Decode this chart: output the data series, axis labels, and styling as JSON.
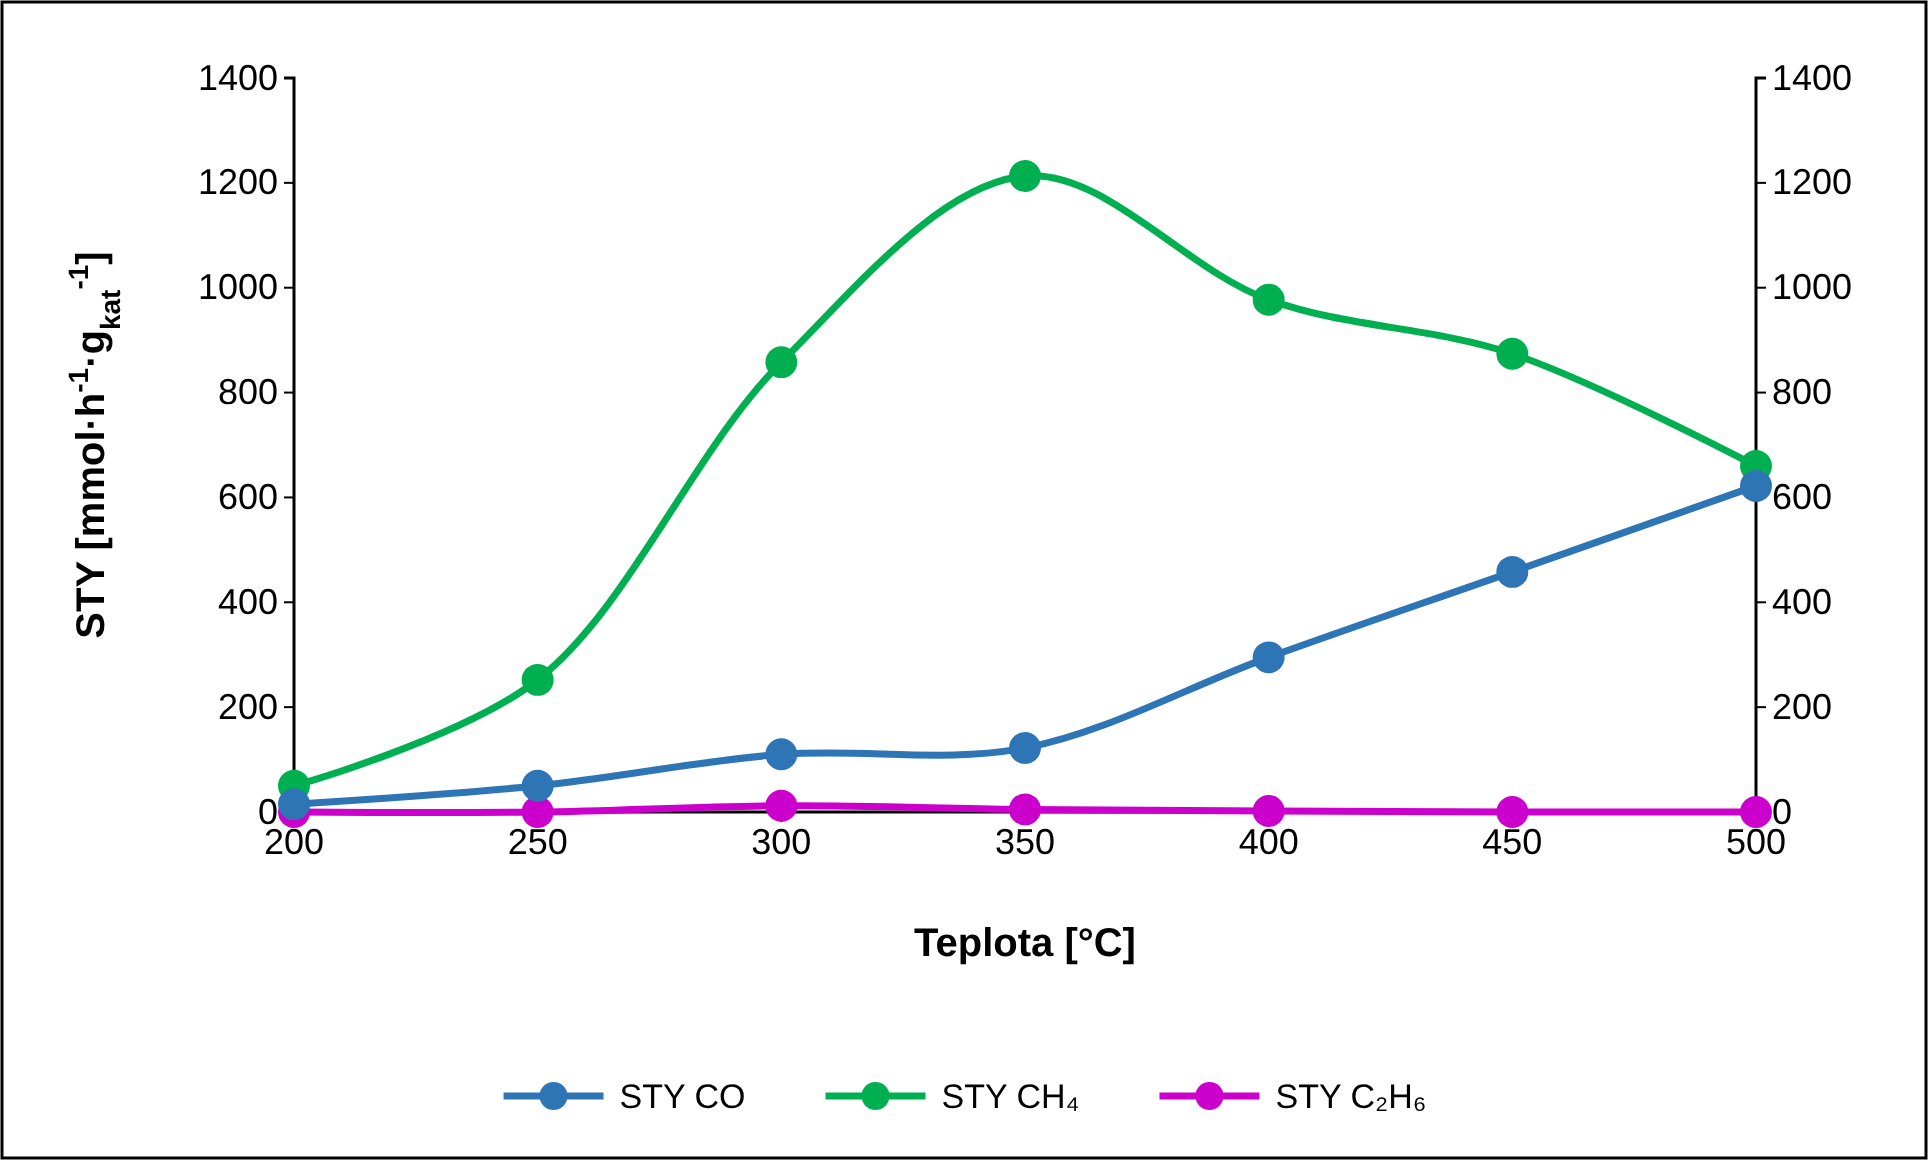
{
  "chart_data": {
    "type": "line",
    "xlabel": "Teplota [°C]",
    "ylabel": "STY [mmol·h$^{-1}$·g$_{kat}$$^{-1}$]",
    "x": [
      200,
      250,
      300,
      350,
      400,
      450,
      500
    ],
    "series": [
      {
        "name": "STY CO",
        "color": "#2e75b6",
        "values": [
          15,
          50,
          110,
          122,
          295,
          458,
          622
        ]
      },
      {
        "name": "STY CH₄",
        "color": "#00b050",
        "values": [
          50,
          252,
          858,
          1213,
          977,
          874,
          660
        ]
      },
      {
        "name": "STY C₂H₆",
        "color": "#cc00cc",
        "values": [
          0,
          0,
          12,
          5,
          2,
          0,
          0
        ]
      }
    ],
    "xlim": [
      200,
      500
    ],
    "xticks": [
      200,
      250,
      300,
      350,
      400,
      450,
      500
    ],
    "ylim": [
      0,
      1400
    ],
    "yticks": [
      0,
      200,
      400,
      600,
      800,
      1000,
      1200,
      1400
    ],
    "y2lim": [
      0,
      1400
    ],
    "y2ticks": [
      0,
      200,
      400,
      600,
      800,
      1000,
      1200,
      1400
    ],
    "grid": false,
    "legend": "bottom",
    "marker": "circle",
    "line_style": "solid"
  }
}
